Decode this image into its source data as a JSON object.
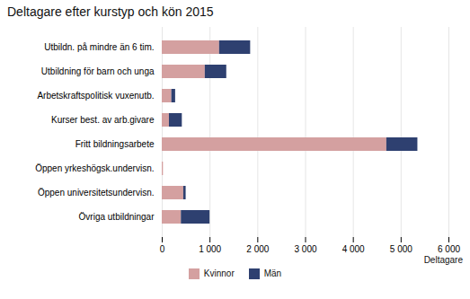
{
  "chart_data": {
    "type": "bar",
    "orientation": "horizontal",
    "stacked": true,
    "title": "Deltagare efter kurstyp och kön 2015",
    "xlabel": "Deltagare",
    "categories": [
      "Utbildn. på mindre än 6 tim.",
      "Utbildning för barn och unga",
      "Arbetskraftspolitisk vuxenutb.",
      "Kurser best. av arb.givare",
      "Fritt bildningsarbete",
      "Öppen yrkeshögsk.undervisn.",
      "Öppen universitetsundervisn.",
      "Övriga utbildningar"
    ],
    "series": [
      {
        "name": "Kvinnor",
        "color": "#d4a0a0",
        "values": [
          1200,
          900,
          200,
          150,
          4700,
          25,
          450,
          400
        ]
      },
      {
        "name": "Män",
        "color": "#2e4070",
        "values": [
          650,
          450,
          80,
          270,
          650,
          0,
          50,
          600
        ]
      }
    ],
    "xlim": [
      0,
      6000
    ],
    "xticks": [
      0,
      {
        "value": 1000,
        "label": "1 000"
      },
      {
        "value": 2000,
        "label": "2 000"
      },
      {
        "value": 3000,
        "label": "3 000"
      },
      {
        "value": 4000,
        "label": "4 000"
      },
      {
        "value": 5000,
        "label": "5 000"
      },
      {
        "value": 6000,
        "label": "6 000"
      }
    ],
    "grid": true,
    "legend": "bottom"
  }
}
